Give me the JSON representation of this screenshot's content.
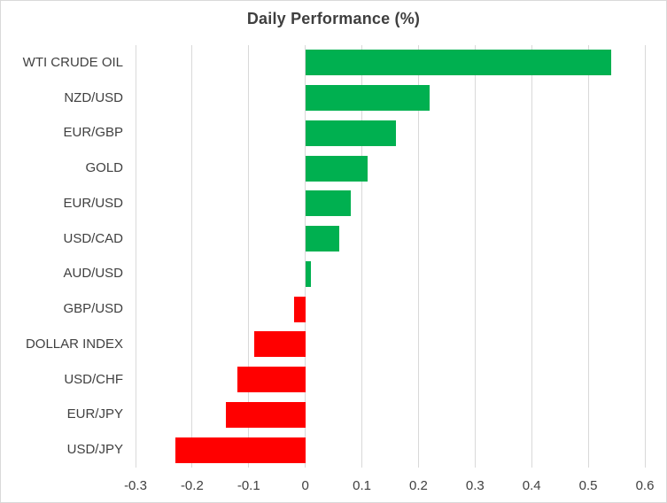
{
  "chart": {
    "title": "Daily Performance (%)"
  },
  "chart_data": {
    "type": "bar",
    "orientation": "horizontal",
    "title": "Daily Performance (%)",
    "xlabel": "",
    "ylabel": "",
    "categories": [
      "WTI CRUDE OIL",
      "NZD/USD",
      "EUR/GBP",
      "GOLD",
      "EUR/USD",
      "USD/CAD",
      "AUD/USD",
      "GBP/USD",
      "DOLLAR INDEX",
      "USD/CHF",
      "EUR/JPY",
      "USD/JPY"
    ],
    "values": [
      0.54,
      0.22,
      0.16,
      0.11,
      0.08,
      0.06,
      0.01,
      -0.02,
      -0.09,
      -0.12,
      -0.14,
      -0.23
    ],
    "xlim": [
      -0.3,
      0.6
    ],
    "xticks": [
      -0.3,
      -0.2,
      -0.1,
      0,
      0.1,
      0.2,
      0.3,
      0.4,
      0.5,
      0.6
    ],
    "xtick_labels": [
      "-0.3",
      "-0.2",
      "-0.1",
      "0",
      "0.1",
      "0.2",
      "0.3",
      "0.4",
      "0.5",
      "0.6"
    ],
    "grid": true,
    "legend": false,
    "positive_color": "#00B050",
    "negative_color": "#FF0000",
    "gridline_color": "#D9D9D9",
    "text_color": "#404040",
    "frame_color": "#D9D9D9"
  }
}
